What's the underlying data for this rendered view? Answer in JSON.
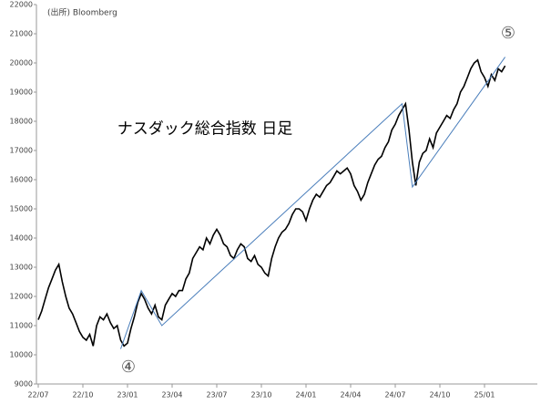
{
  "chart_data": {
    "type": "line",
    "title": "ナスダック総合指数 日足",
    "source": "(出所) Bloomberg",
    "annotations": [
      "④",
      "⑤"
    ],
    "categories": [
      "22/07",
      null,
      null,
      null,
      null,
      null,
      null,
      null,
      null,
      null,
      null,
      null,
      null,
      "22/10",
      null,
      null,
      null,
      null,
      null,
      null,
      null,
      null,
      null,
      null,
      null,
      null,
      "23/01",
      null,
      null,
      null,
      null,
      null,
      null,
      null,
      null,
      null,
      null,
      null,
      null,
      "23/04",
      null,
      null,
      null,
      null,
      null,
      null,
      null,
      null,
      null,
      null,
      null,
      null,
      "23/07",
      null,
      null,
      null,
      null,
      null,
      null,
      null,
      null,
      null,
      null,
      null,
      null,
      "23/10",
      null,
      null,
      null,
      null,
      null,
      null,
      null,
      null,
      null,
      null,
      null,
      null,
      "24/01",
      null,
      null,
      null,
      null,
      null,
      null,
      null,
      null,
      null,
      null,
      null,
      null,
      "24/04",
      null,
      null,
      null,
      null,
      null,
      null,
      null,
      null,
      null,
      null,
      null,
      null,
      "24/07",
      null,
      null,
      null,
      null,
      null,
      null,
      null,
      null,
      null,
      null,
      null,
      null,
      "24/10",
      null,
      null,
      null,
      null,
      null,
      null,
      null,
      null,
      null,
      null,
      null,
      null,
      "25/01",
      null,
      null,
      null,
      null,
      null,
      null
    ],
    "series": [
      {
        "color": "#000000",
        "values": [
          11200,
          11500,
          11900,
          12300,
          12600,
          12900,
          13100,
          12500,
          12000,
          11600,
          11400,
          11100,
          10800,
          10600,
          10500,
          10700,
          10300,
          11000,
          11300,
          11200,
          11400,
          11100,
          10900,
          11000,
          10500,
          10300,
          10400,
          10900,
          11300,
          11800,
          12100,
          11900,
          11600,
          11400,
          11700,
          11300,
          11200,
          11700,
          11900,
          12100,
          12000,
          12200,
          12200,
          12600,
          12800,
          13300,
          13500,
          13700,
          13600,
          14000,
          13800,
          14100,
          14300,
          14100,
          13800,
          13700,
          13400,
          13300,
          13600,
          13800,
          13700,
          13300,
          13200,
          13400,
          13100,
          13000,
          12800,
          12700,
          13300,
          13700,
          14000,
          14200,
          14300,
          14500,
          14800,
          15000,
          15000,
          14900,
          14600,
          15000,
          15300,
          15500,
          15400,
          15600,
          15800,
          15900,
          16100,
          16300,
          16200,
          16300,
          16400,
          16200,
          15800,
          15600,
          15300,
          15500,
          15900,
          16200,
          16500,
          16700,
          16800,
          17100,
          17300,
          17700,
          17900,
          18200,
          18400,
          18600,
          17700,
          16600,
          15800,
          16600,
          16900,
          17000,
          17400,
          17100,
          17600,
          17800,
          18000,
          18200,
          18100,
          18400,
          18600,
          19000,
          19200,
          19500,
          19800,
          20000,
          20100,
          19700,
          19500,
          19200,
          19600,
          19400,
          19800,
          19700,
          19900
        ]
      }
    ],
    "trendline": {
      "color": "#4a7ebb",
      "x": [
        24,
        30,
        36,
        106,
        109,
        136
      ],
      "values": [
        10200,
        12200,
        11000,
        18600,
        15750,
        20200
      ]
    },
    "ylim": [
      9000,
      22000
    ],
    "yticks": [
      9000,
      10000,
      11000,
      12000,
      13000,
      14000,
      15000,
      16000,
      17000,
      18000,
      19000,
      20000,
      21000,
      22000
    ],
    "grid": false
  }
}
